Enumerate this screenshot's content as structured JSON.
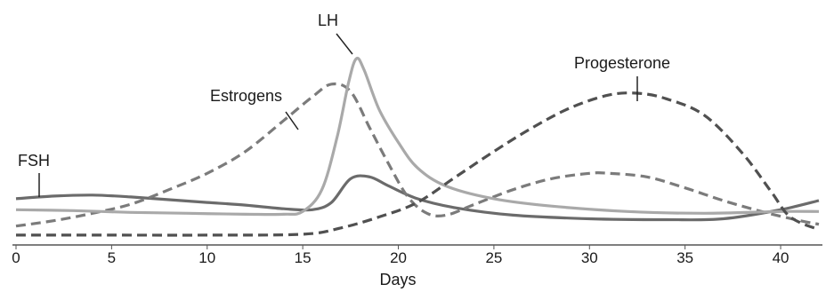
{
  "chart_data": {
    "type": "line",
    "xlabel": "Days",
    "ylabel": "",
    "xlim": [
      0,
      42
    ],
    "ylim": [
      0,
      100
    ],
    "x_ticks": [
      0,
      5,
      10,
      15,
      20,
      25,
      30,
      35,
      40
    ],
    "x_tick_labels": [
      "0",
      "5",
      "10",
      "15",
      "20",
      "25",
      "30",
      "35",
      "40"
    ],
    "grid": false,
    "legend": "none (labels placed next to curves)",
    "series": [
      {
        "name": "FSH",
        "color": "#6b6b6b",
        "dash": "solid",
        "points": [
          [
            0,
            21
          ],
          [
            2,
            22.5
          ],
          [
            4,
            23
          ],
          [
            6,
            22
          ],
          [
            8,
            20.5
          ],
          [
            10,
            19
          ],
          [
            12,
            17.5
          ],
          [
            14,
            15.5
          ],
          [
            15.5,
            15
          ],
          [
            16.5,
            19
          ],
          [
            17.5,
            32
          ],
          [
            18.5,
            33
          ],
          [
            19.5,
            28
          ],
          [
            21,
            21
          ],
          [
            23,
            16
          ],
          [
            26,
            12
          ],
          [
            30,
            10
          ],
          [
            34,
            9.5
          ],
          [
            37,
            10
          ],
          [
            40,
            15
          ],
          [
            42,
            20
          ]
        ]
      },
      {
        "name": "Estrogens",
        "color": "#7b7b7b",
        "dash": "dashed",
        "points": [
          [
            0,
            6
          ],
          [
            2,
            9
          ],
          [
            4,
            13
          ],
          [
            6,
            18
          ],
          [
            8,
            26
          ],
          [
            10,
            35
          ],
          [
            12,
            47
          ],
          [
            14,
            64
          ],
          [
            15.5,
            77
          ],
          [
            16.5,
            84
          ],
          [
            17.5,
            80
          ],
          [
            18.5,
            60
          ],
          [
            19.5,
            40
          ],
          [
            20.5,
            22
          ],
          [
            21.5,
            13
          ],
          [
            22.5,
            12
          ],
          [
            24,
            18
          ],
          [
            26,
            26
          ],
          [
            28,
            32
          ],
          [
            30,
            35
          ],
          [
            31,
            35
          ],
          [
            33,
            33
          ],
          [
            35,
            27
          ],
          [
            37,
            20
          ],
          [
            39,
            14
          ],
          [
            41,
            9
          ],
          [
            42,
            7
          ]
        ]
      },
      {
        "name": "LH",
        "color": "#a9a9a9",
        "dash": "solid",
        "points": [
          [
            0,
            15
          ],
          [
            3,
            14.5
          ],
          [
            6,
            13.5
          ],
          [
            9,
            13
          ],
          [
            12,
            12.5
          ],
          [
            14,
            12.5
          ],
          [
            15,
            14
          ],
          [
            16,
            26
          ],
          [
            16.8,
            55
          ],
          [
            17.4,
            85
          ],
          [
            17.8,
            98
          ],
          [
            18.2,
            92
          ],
          [
            19,
            70
          ],
          [
            20,
            52
          ],
          [
            21,
            38
          ],
          [
            22.5,
            28
          ],
          [
            25,
            21
          ],
          [
            28,
            17
          ],
          [
            32,
            14
          ],
          [
            36,
            13
          ],
          [
            40,
            14
          ],
          [
            42,
            14
          ]
        ]
      },
      {
        "name": "Progesterone",
        "color": "#505050",
        "dash": "dashed",
        "points": [
          [
            0,
            1
          ],
          [
            5,
            1
          ],
          [
            10,
            1
          ],
          [
            15,
            1.5
          ],
          [
            17,
            5
          ],
          [
            19,
            11
          ],
          [
            21,
            19
          ],
          [
            23,
            33
          ],
          [
            25,
            47
          ],
          [
            27,
            60
          ],
          [
            29,
            71
          ],
          [
            31,
            78
          ],
          [
            32.5,
            79
          ],
          [
            34,
            76
          ],
          [
            36,
            67
          ],
          [
            38,
            46
          ],
          [
            39.5,
            25
          ],
          [
            40.5,
            11
          ],
          [
            42,
            4
          ]
        ]
      }
    ]
  },
  "labels": {
    "fsh": "FSH",
    "estrogens": "Estrogens",
    "lh": "LH",
    "progesterone": "Progesterone"
  }
}
